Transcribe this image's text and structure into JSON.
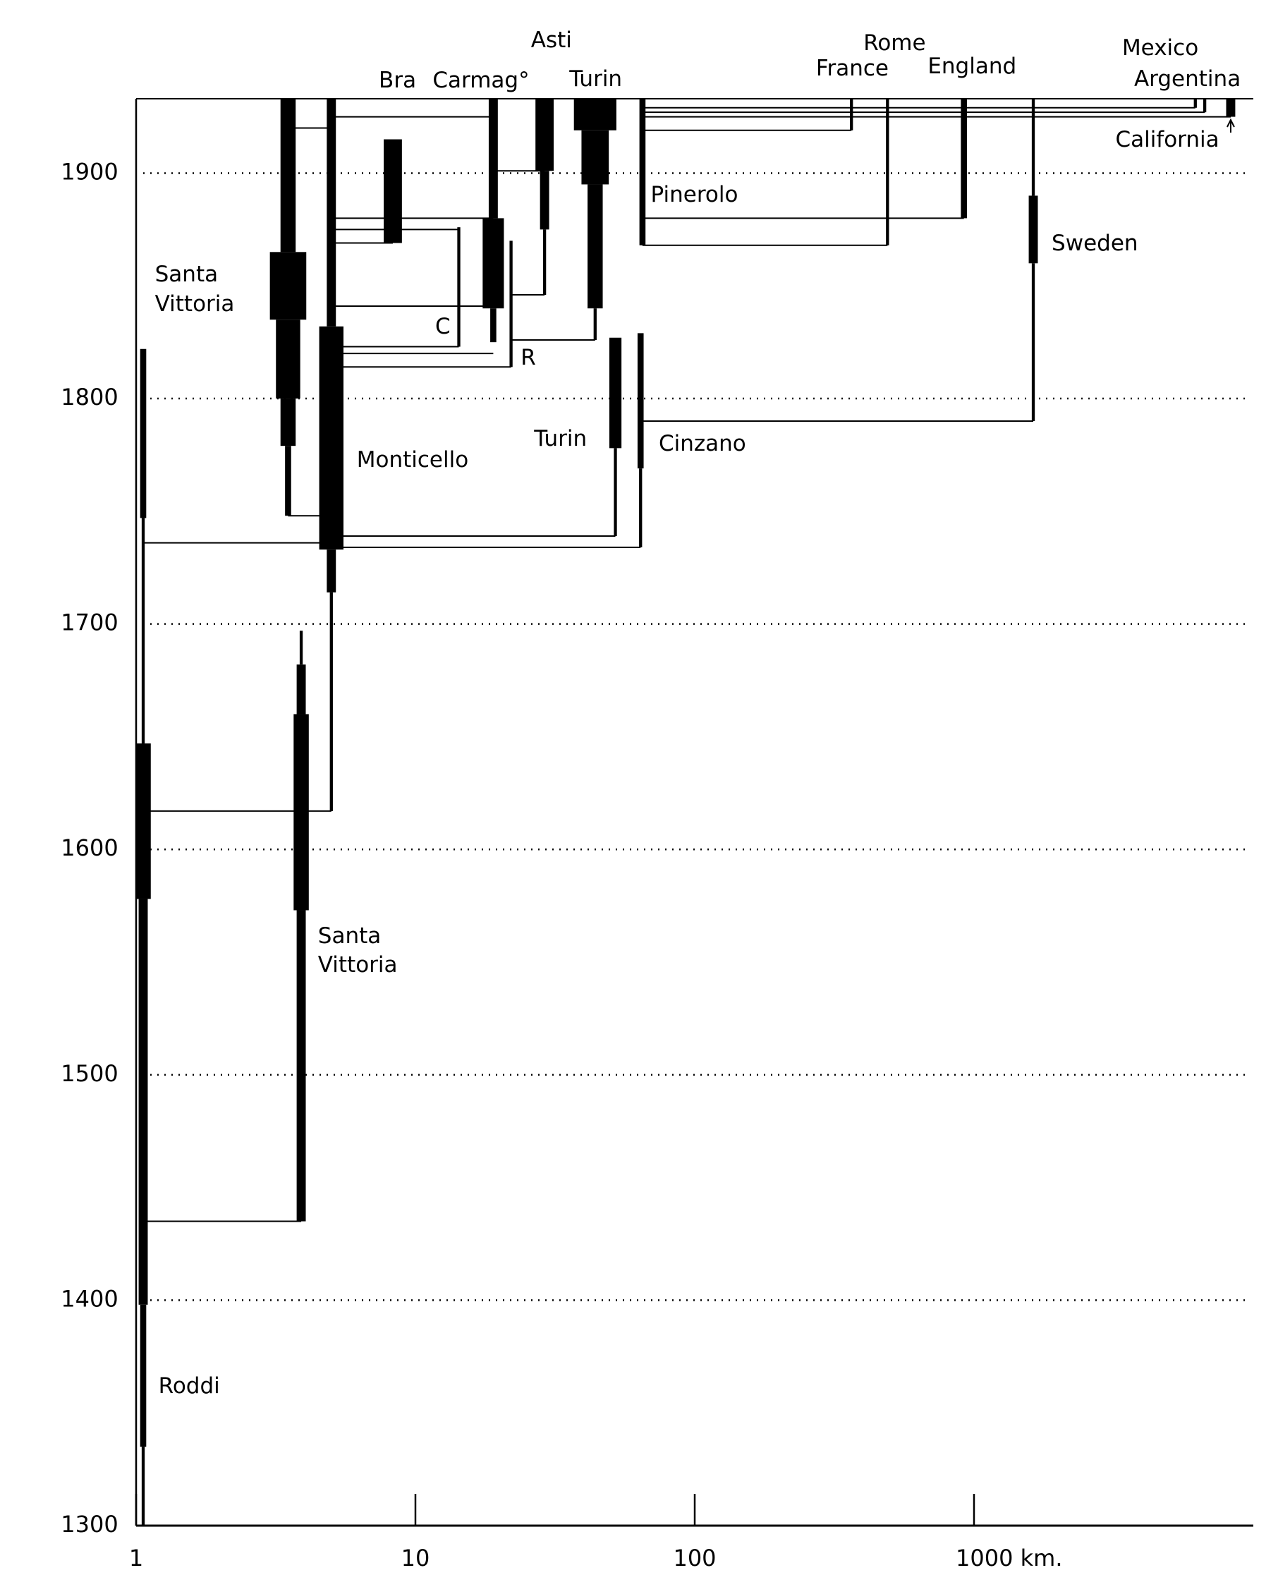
{
  "chart_data": {
    "type": "lineage",
    "xlog": true,
    "xlim": [
      1,
      10000
    ],
    "ylim": [
      1300,
      1933
    ],
    "xticks": [
      1,
      10,
      100,
      {
        "value": 1000,
        "label": "1000 km."
      }
    ],
    "yticks": [
      1300,
      1400,
      1500,
      1600,
      1700,
      1800,
      1900
    ],
    "grid": true,
    "color": "#000000",
    "places": [
      {
        "name": "Roddi",
        "x": 1.06,
        "bars": [
          {
            "from": 1300,
            "to": 1335,
            "weight": 1
          },
          {
            "from": 1335,
            "to": 1398,
            "weight": 2
          },
          {
            "from": 1398,
            "to": 1578,
            "weight": 3
          },
          {
            "from": 1578,
            "to": 1647,
            "weight": 5
          },
          {
            "from": 1647,
            "to": 1747,
            "weight": 1
          },
          {
            "from": 1747,
            "to": 1822,
            "weight": 2
          }
        ]
      },
      {
        "name": "Santa Vittoria",
        "x": 3.9,
        "bars": [
          {
            "from": 1435,
            "to": 1573,
            "weight": 3
          },
          {
            "from": 1573,
            "to": 1660,
            "weight": 5
          },
          {
            "from": 1660,
            "to": 1682,
            "weight": 3
          },
          {
            "from": 1682,
            "to": 1697,
            "weight": 1
          }
        ]
      },
      {
        "name": "Santa Vittoria",
        "x": 3.5,
        "bars": [
          {
            "from": 1748,
            "to": 1779,
            "weight": 2
          },
          {
            "from": 1779,
            "to": 1800,
            "weight": 5
          },
          {
            "from": 1800,
            "to": 1835,
            "weight": 8
          },
          {
            "from": 1835,
            "to": 1865,
            "weight": 12
          },
          {
            "from": 1865,
            "to": 1933,
            "weight": 5
          }
        ]
      },
      {
        "name": "Monticello",
        "x": 5.0,
        "bars": [
          {
            "from": 1617,
            "to": 1714,
            "weight": 1
          },
          {
            "from": 1714,
            "to": 1733,
            "weight": 3
          },
          {
            "from": 1733,
            "to": 1832,
            "weight": 8
          },
          {
            "from": 1832,
            "to": 1933,
            "weight": 3
          }
        ]
      },
      {
        "name": "Bra",
        "x": 8.3,
        "bars": [
          {
            "from": 1869,
            "to": 1915,
            "weight": 6
          }
        ]
      },
      {
        "name": "Carmag°",
        "x": 19,
        "bars": [
          {
            "from": 1825,
            "to": 1840,
            "weight": 2
          },
          {
            "from": 1840,
            "to": 1880,
            "weight": 7
          },
          {
            "from": 1880,
            "to": 1933,
            "weight": 3
          }
        ]
      },
      {
        "name": "C",
        "x": 14.3,
        "bars": [
          {
            "from": 1823,
            "to": 1876,
            "weight": 1
          }
        ]
      },
      {
        "name": "R",
        "x": 22,
        "bars": [
          {
            "from": 1814,
            "to": 1870,
            "weight": 1
          }
        ]
      },
      {
        "name": "Asti",
        "x": 29,
        "bars": [
          {
            "from": 1846,
            "to": 1875,
            "weight": 1
          },
          {
            "from": 1875,
            "to": 1901,
            "weight": 3
          },
          {
            "from": 1901,
            "to": 1933,
            "weight": 6
          }
        ]
      },
      {
        "name": "Turin",
        "x": 44,
        "bars": [
          {
            "from": 1826,
            "to": 1840,
            "weight": 1
          },
          {
            "from": 1840,
            "to": 1895,
            "weight": 5
          },
          {
            "from": 1895,
            "to": 1919,
            "weight": 9
          },
          {
            "from": 1919,
            "to": 1933,
            "weight": 14
          }
        ]
      },
      {
        "name": "Pinerolo",
        "x": 65,
        "bars": [
          {
            "from": 1868,
            "to": 1933,
            "weight": 2
          }
        ]
      },
      {
        "name": "Turin",
        "x": 52,
        "bars": [
          {
            "from": 1739,
            "to": 1778,
            "weight": 1
          },
          {
            "from": 1778,
            "to": 1827,
            "weight": 4
          }
        ]
      },
      {
        "name": "Cinzano",
        "x": 64,
        "bars": [
          {
            "from": 1734,
            "to": 1769,
            "weight": 1
          },
          {
            "from": 1769,
            "to": 1829,
            "weight": 2
          }
        ]
      },
      {
        "name": "France",
        "x": 364,
        "bars": [
          {
            "from": 1919,
            "to": 1933,
            "weight": 1
          }
        ]
      },
      {
        "name": "Rome",
        "x": 490,
        "bars": [
          {
            "from": 1868,
            "to": 1933,
            "weight": 1
          }
        ]
      },
      {
        "name": "England",
        "x": 920,
        "bars": [
          {
            "from": 1880,
            "to": 1933,
            "weight": 2
          }
        ]
      },
      {
        "name": "Sweden",
        "x": 1630,
        "bars": [
          {
            "from": 1790,
            "to": 1860,
            "weight": 1
          },
          {
            "from": 1860,
            "to": 1890,
            "weight": 3
          },
          {
            "from": 1890,
            "to": 1933,
            "weight": 1
          }
        ]
      },
      {
        "name": "Mexico",
        "x": 6200,
        "bars": [
          {
            "from": 1929,
            "to": 1933,
            "weight": 1
          }
        ]
      },
      {
        "name": "Argentina",
        "x": 6700,
        "bars": [
          {
            "from": 1927,
            "to": 1933,
            "weight": 1
          }
        ]
      },
      {
        "name": "California",
        "x": 8300,
        "bars": [
          {
            "from": 1925,
            "to": 1933,
            "weight": 3
          }
        ]
      }
    ],
    "links": [
      {
        "year": 1435,
        "from": 1.06,
        "to": 3.9
      },
      {
        "year": 1617,
        "from": 1.06,
        "to": 5.0
      },
      {
        "year": 1736,
        "from": 1.06,
        "to": 5.0
      },
      {
        "year": 1748,
        "from": 3.5,
        "to": 5.0
      },
      {
        "year": 1739,
        "from": 5.0,
        "to": 52
      },
      {
        "year": 1734,
        "from": 5.0,
        "to": 64
      },
      {
        "year": 1790,
        "from": 64,
        "to": 1630
      },
      {
        "year": 1823,
        "from": 5.0,
        "to": 14.3
      },
      {
        "year": 1820,
        "from": 5.0,
        "to": 19
      },
      {
        "year": 1814,
        "from": 5.0,
        "to": 22
      },
      {
        "year": 1826,
        "from": 22,
        "to": 44
      },
      {
        "year": 1841,
        "from": 5.0,
        "to": 19
      },
      {
        "year": 1846,
        "from": 22,
        "to": 29
      },
      {
        "year": 1869,
        "from": 5.0,
        "to": 8.3
      },
      {
        "year": 1875,
        "from": 5.0,
        "to": 14.3
      },
      {
        "year": 1880,
        "from": 5.0,
        "to": 19
      },
      {
        "year": 1901,
        "from": 19,
        "to": 29
      },
      {
        "year": 1868,
        "from": 65,
        "to": 490
      },
      {
        "year": 1880,
        "from": 65,
        "to": 920
      },
      {
        "year": 1919,
        "from": 65,
        "to": 364
      },
      {
        "year": 1925,
        "from": 65,
        "to": 8300
      },
      {
        "year": 1927,
        "from": 65,
        "to": 6700
      },
      {
        "year": 1929,
        "from": 65,
        "to": 6200
      },
      {
        "year": 1925,
        "from": 5.0,
        "to": 19
      },
      {
        "year": 1920,
        "from": 3.5,
        "to": 5.0
      }
    ]
  }
}
